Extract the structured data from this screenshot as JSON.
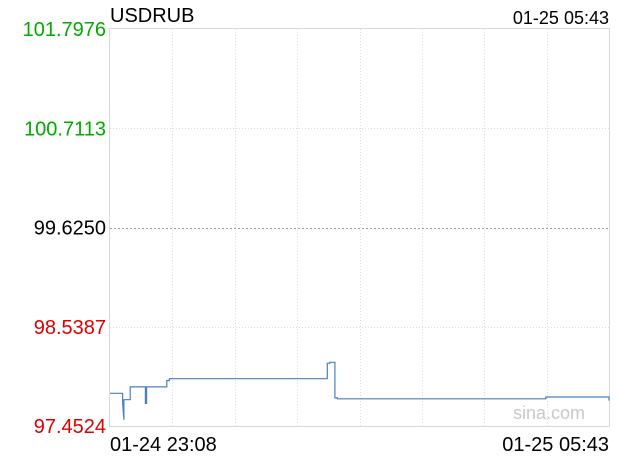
{
  "chart_data": {
    "type": "line",
    "title": "USDRUB",
    "timestamp": "01-25 05:43",
    "watermark": "sina.com",
    "y_ticks": [
      {
        "label": "101.7976",
        "value": 101.7976,
        "color": "#00aa00"
      },
      {
        "label": "100.7113",
        "value": 100.7113,
        "color": "#00aa00"
      },
      {
        "label": "99.6250",
        "value": 99.625,
        "color": "#000000"
      },
      {
        "label": "98.5387",
        "value": 98.5387,
        "color": "#dd0000"
      },
      {
        "label": "97.4524",
        "value": 97.4524,
        "color": "#dd0000"
      }
    ],
    "ylim": [
      97.4524,
      101.7976
    ],
    "reference_value": 99.625,
    "x_tick_labels": [
      "01-24 23:08",
      "01-25 05:43"
    ],
    "x_range_minutes": [
      0,
      395
    ],
    "grid": true,
    "line_color": "#4a7fc1",
    "series": [
      {
        "x": [
          0,
          10,
          10,
          11,
          11,
          16,
          16,
          28,
          28,
          29,
          29,
          30,
          30,
          45,
          45,
          47,
          47,
          172,
          172,
          174,
          174,
          178,
          178,
          180,
          180,
          345,
          345,
          395,
          395
        ],
        "y": [
          97.81,
          97.81,
          97.71,
          97.52,
          97.74,
          97.74,
          97.88,
          97.88,
          97.7,
          97.7,
          97.88,
          97.88,
          97.88,
          97.88,
          97.95,
          97.95,
          97.97,
          97.97,
          98.14,
          98.14,
          98.15,
          98.15,
          97.76,
          97.76,
          97.75,
          97.75,
          97.77,
          97.77,
          97.73
        ]
      }
    ]
  }
}
